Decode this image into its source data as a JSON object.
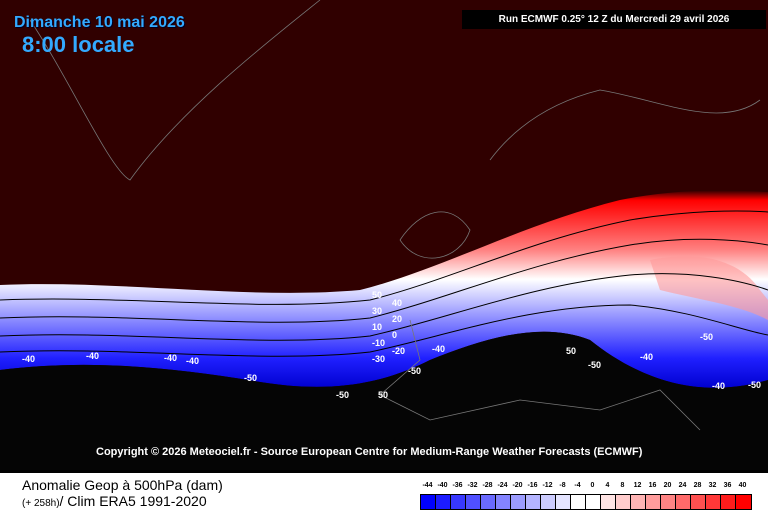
{
  "header": {
    "date": "Dimanche 10 mai 2026",
    "time": "8:00 locale",
    "run": "Run ECMWF 0.25° 12 Z du Mercredi 29 avril 2026"
  },
  "copyright": "Copyright © 2026 Meteociel.fr - Source European Centre for Medium-Range Weather Forecasts (ECMWF)",
  "footer": {
    "title": "Anomalie Geop à 500hPa (dam)",
    "lead": "(+ 258h)",
    "clim": "/ Clim ERA5 1991-2020"
  },
  "legend": {
    "labels": [
      "-44",
      "-40",
      "-36",
      "-32",
      "-28",
      "-24",
      "-20",
      "-16",
      "-12",
      "-8",
      "-4",
      "0",
      "4",
      "8",
      "12",
      "16",
      "20",
      "24",
      "28",
      "32",
      "36",
      "40"
    ],
    "colors": [
      "#0000ff",
      "#1c1cff",
      "#3838ff",
      "#5050ff",
      "#6a6aff",
      "#8484ff",
      "#9c9cff",
      "#b4b4ff",
      "#ccccff",
      "#e4e4ff",
      "#ffffff",
      "#ffffff",
      "#ffe4e4",
      "#ffcccc",
      "#ffb4b4",
      "#ff9c9c",
      "#ff8484",
      "#ff6a6a",
      "#ff5050",
      "#ff3838",
      "#ff1c1c",
      "#ff0000"
    ]
  },
  "contour_labels": [
    "50",
    "40",
    "30",
    "20",
    "10",
    "0",
    "-10",
    "-20",
    "-30",
    "-40",
    "-50",
    "-40",
    "-40",
    "-40",
    "-40",
    "-50",
    "-50",
    "50",
    "-40",
    "-50",
    "50",
    "-50",
    "-40",
    "-50"
  ]
}
